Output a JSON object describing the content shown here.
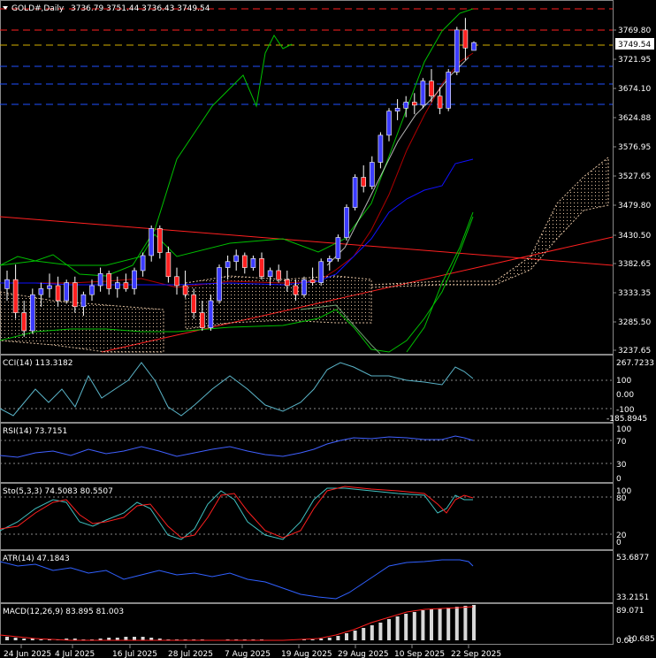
{
  "symbol_header": "GOLD#,Daily",
  "ohlc_text": "3736.79 3751.44 3736.43 3749.54",
  "price_axis": {
    "ticks": [
      "3769.80",
      "3721.95",
      "3674.10",
      "3624.88",
      "3576.95",
      "3527.65",
      "3479.80",
      "3430.50",
      "3382.65",
      "3333.35",
      "3285.50",
      "3237.65"
    ],
    "current_price": "3749.54"
  },
  "date_axis": [
    "24 Jun 2025",
    "4 Jul 2025",
    "16 Jul 2025",
    "28 Jul 2025",
    "7 Aug 2025",
    "19 Aug 2025",
    "29 Aug 2025",
    "10 Sep 2025",
    "22 Sep 2025"
  ],
  "indicators": {
    "cci": {
      "label": "CCI(14) 113.3182",
      "ticks": [
        "267.7233",
        "100",
        "0.00",
        "-100",
        "-185.8945"
      ]
    },
    "rsi": {
      "label": "RSI(14) 73.7151",
      "ticks": [
        "100",
        "70",
        "30",
        "0"
      ]
    },
    "sto": {
      "label": "Sto(5,3,3) 74.5083 80.5507",
      "ticks": [
        "100",
        "80",
        "20",
        "0"
      ]
    },
    "atr": {
      "label": "ATR(14) 47.1843",
      "ticks": [
        "53.6877",
        "33.2151"
      ]
    },
    "macd": {
      "label": "MACD(12,26,9) 83.895 81.003",
      "ticks": [
        "89.071",
        "-10.685",
        "0.00"
      ]
    }
  },
  "colors": {
    "bull": "#3b3bff",
    "bear": "#ff2020",
    "bands_outer": "#00c000",
    "bands_mid": "#b00000",
    "ma_blue": "#1010ff",
    "ichimoku": "#e0c0a0",
    "cci": "#5ab4c8",
    "rsi": "#4060ff",
    "sto_main": "#40c0c0",
    "sto_signal": "#ff2020",
    "atr": "#3060ff",
    "macd_hist": "#d8d8d8",
    "macd_signal": "#ff2020"
  },
  "candles": [
    [
      3340,
      3370,
      3320,
      3355
    ],
    [
      3355,
      3380,
      3290,
      3300
    ],
    [
      3300,
      3320,
      3260,
      3270
    ],
    [
      3270,
      3340,
      3265,
      3330
    ],
    [
      3330,
      3350,
      3310,
      3340
    ],
    [
      3340,
      3365,
      3325,
      3345
    ],
    [
      3345,
      3360,
      3310,
      3320
    ],
    [
      3320,
      3355,
      3315,
      3350
    ],
    [
      3350,
      3360,
      3300,
      3310
    ],
    [
      3310,
      3335,
      3295,
      3330
    ],
    [
      3330,
      3355,
      3320,
      3345
    ],
    [
      3345,
      3375,
      3335,
      3365
    ],
    [
      3365,
      3370,
      3330,
      3340
    ],
    [
      3340,
      3360,
      3325,
      3350
    ],
    [
      3350,
      3365,
      3335,
      3340
    ],
    [
      3340,
      3375,
      3330,
      3370
    ],
    [
      3370,
      3400,
      3360,
      3395
    ],
    [
      3395,
      3445,
      3385,
      3440
    ],
    [
      3440,
      3445,
      3390,
      3400
    ],
    [
      3400,
      3410,
      3350,
      3360
    ],
    [
      3360,
      3375,
      3330,
      3345
    ],
    [
      3345,
      3370,
      3325,
      3330
    ],
    [
      3330,
      3340,
      3290,
      3300
    ],
    [
      3300,
      3320,
      3270,
      3275
    ],
    [
      3275,
      3330,
      3270,
      3320
    ],
    [
      3320,
      3380,
      3315,
      3375
    ],
    [
      3375,
      3395,
      3355,
      3385
    ],
    [
      3385,
      3405,
      3370,
      3395
    ],
    [
      3395,
      3400,
      3365,
      3375
    ],
    [
      3375,
      3395,
      3370,
      3390
    ],
    [
      3390,
      3400,
      3355,
      3360
    ],
    [
      3360,
      3375,
      3345,
      3370
    ],
    [
      3370,
      3380,
      3350,
      3355
    ],
    [
      3355,
      3370,
      3335,
      3345
    ],
    [
      3345,
      3355,
      3320,
      3330
    ],
    [
      3330,
      3360,
      3325,
      3355
    ],
    [
      3355,
      3375,
      3345,
      3350
    ],
    [
      3350,
      3390,
      3345,
      3385
    ],
    [
      3385,
      3395,
      3370,
      3390
    ],
    [
      3390,
      3430,
      3385,
      3425
    ],
    [
      3425,
      3480,
      3420,
      3475
    ],
    [
      3475,
      3530,
      3470,
      3525
    ],
    [
      3525,
      3545,
      3500,
      3510
    ],
    [
      3510,
      3560,
      3505,
      3550
    ],
    [
      3550,
      3600,
      3540,
      3595
    ],
    [
      3595,
      3640,
      3585,
      3635
    ],
    [
      3635,
      3655,
      3620,
      3640
    ],
    [
      3640,
      3660,
      3625,
      3650
    ],
    [
      3650,
      3665,
      3630,
      3645
    ],
    [
      3645,
      3690,
      3640,
      3685
    ],
    [
      3685,
      3705,
      3650,
      3660
    ],
    [
      3660,
      3675,
      3630,
      3640
    ],
    [
      3640,
      3705,
      3635,
      3700
    ],
    [
      3700,
      3775,
      3695,
      3770
    ],
    [
      3770,
      3790,
      3720,
      3740
    ],
    [
      3736,
      3751,
      3736,
      3749
    ]
  ]
}
